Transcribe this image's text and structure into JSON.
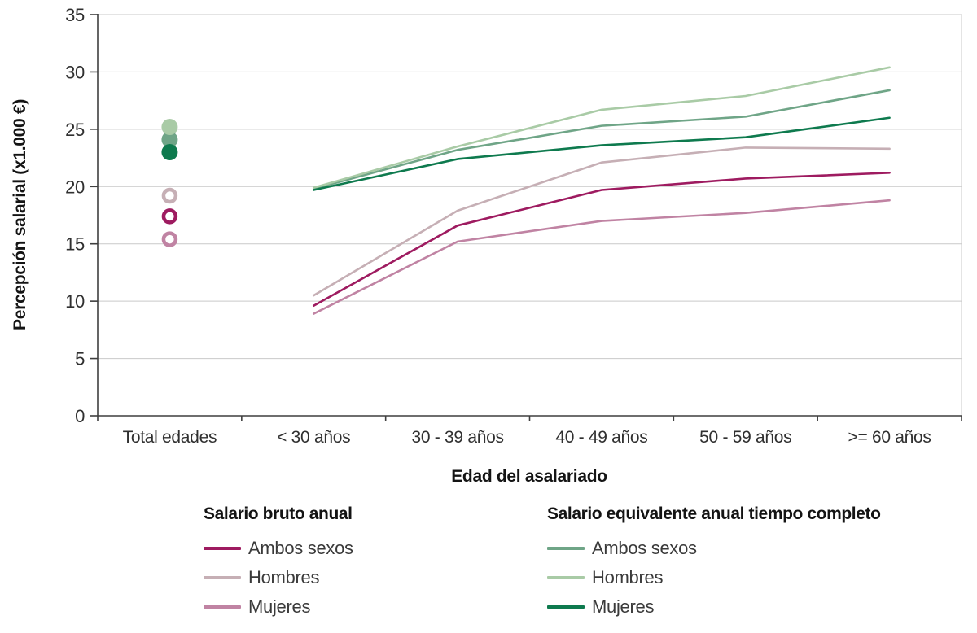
{
  "chart_data": {
    "type": "line",
    "title": "",
    "xlabel": "Edad del asalariado",
    "ylabel": "Percepción salarial (x1.000 €)",
    "categories": [
      "Total edades",
      "< 30 años",
      "30 - 39 años",
      "40 - 49 años",
      "50 - 59 años",
      ">= 60 años"
    ],
    "yticks": [
      0,
      5,
      10,
      15,
      20,
      25,
      30,
      35
    ],
    "ylim": [
      0,
      35
    ],
    "grid": "horizontal",
    "legend_position": "bottom",
    "note": "Lines span the five age-band categories; the 'Total edades' category shows point markers only (open rings = salario bruto, filled dots = salario equivalente).",
    "series": [
      {
        "group": "Salario bruto anual",
        "name": "Ambos sexos",
        "color": "#9E1B60",
        "marker": "open",
        "total_edades": 17.4,
        "values": [
          9.6,
          16.6,
          19.7,
          20.7,
          21.2
        ]
      },
      {
        "group": "Salario bruto anual",
        "name": "Hombres",
        "color": "#C6AFB5",
        "marker": "open",
        "total_edades": 19.2,
        "values": [
          10.5,
          17.9,
          22.1,
          23.4,
          23.3
        ]
      },
      {
        "group": "Salario bruto anual",
        "name": "Mujeres",
        "color": "#C083A3",
        "marker": "open",
        "total_edades": 15.4,
        "values": [
          8.9,
          15.2,
          17.0,
          17.7,
          18.8
        ]
      },
      {
        "group": "Salario equivalente anual tiempo completo",
        "name": "Ambos sexos",
        "color": "#6FA587",
        "marker": "filled",
        "total_edades": 24.1,
        "values": [
          19.8,
          23.2,
          25.3,
          26.1,
          28.4
        ]
      },
      {
        "group": "Salario equivalente anual tiempo completo",
        "name": "Hombres",
        "color": "#A9CBA6",
        "marker": "filled",
        "total_edades": 25.2,
        "values": [
          19.9,
          23.5,
          26.7,
          27.9,
          30.4
        ]
      },
      {
        "group": "Salario equivalente anual tiempo completo",
        "name": "Mujeres",
        "color": "#0E7A4E",
        "marker": "filled",
        "total_edades": 23.0,
        "values": [
          19.7,
          22.4,
          23.6,
          24.3,
          26.0
        ]
      }
    ]
  },
  "legend": {
    "groups": [
      {
        "title": "Salario bruto anual",
        "items": [
          "Ambos sexos",
          "Hombres",
          "Mujeres"
        ]
      },
      {
        "title": "Salario equivalente anual tiempo completo",
        "items": [
          "Ambos sexos",
          "Hombres",
          "Mujeres"
        ]
      }
    ]
  },
  "colors": {
    "gridline": "#c9c9c9",
    "axis": "#3f3f3f",
    "background": "#ffffff"
  }
}
